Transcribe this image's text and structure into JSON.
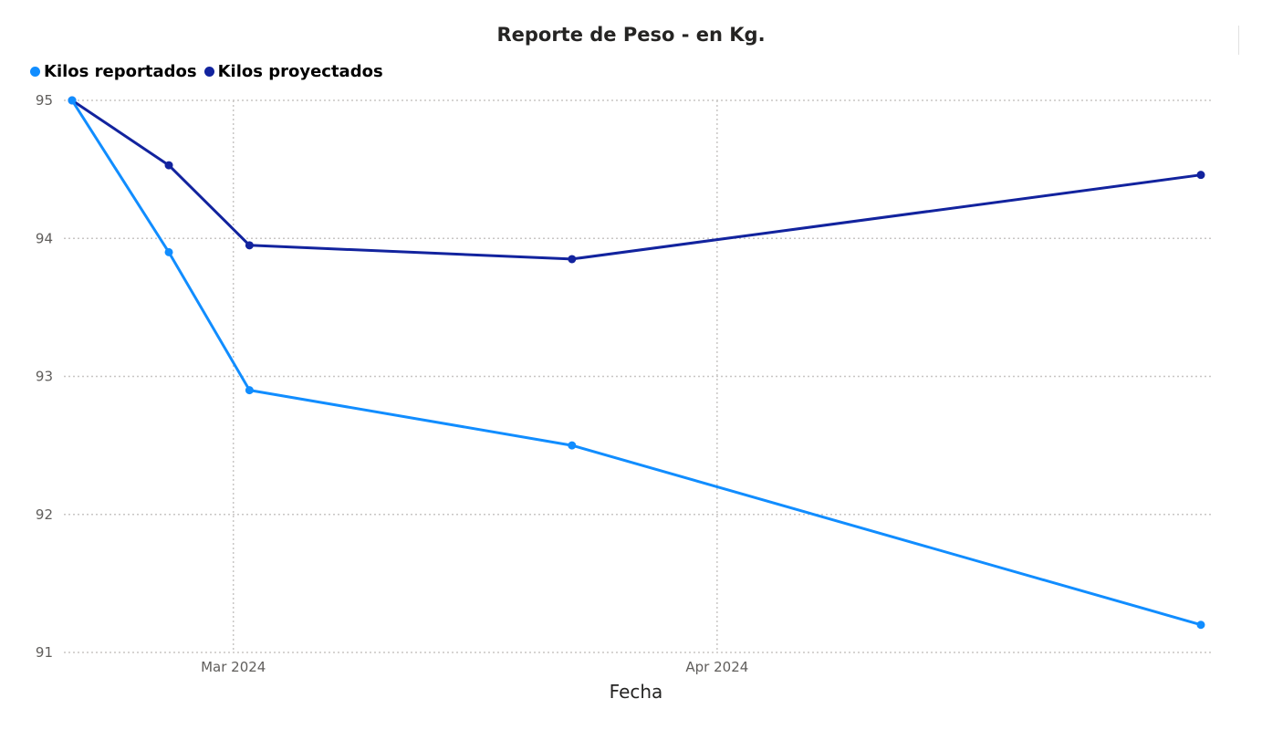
{
  "chart_data": {
    "type": "line",
    "title": "Reporte de Peso - en Kg.",
    "xlabel": "Fecha",
    "ylabel": "",
    "x": [
      "2024-02-21",
      "2024-02-27",
      "2024-03-03",
      "2024-03-23",
      "2024-05-01"
    ],
    "x_ticks": [
      {
        "date": "2024-03-02",
        "label": "Mar 2024"
      },
      {
        "date": "2024-04-01",
        "label": "Apr 2024"
      }
    ],
    "xlim": [
      "2024-02-21",
      "2024-05-01"
    ],
    "y_ticks": [
      91,
      92,
      93,
      94,
      95
    ],
    "ylim": [
      91,
      95
    ],
    "grid": true,
    "legend_position": "top-left",
    "series": [
      {
        "name": "Kilos reportados",
        "color": "#118dff",
        "values": [
          95.0,
          93.9,
          92.9,
          92.5,
          91.2
        ]
      },
      {
        "name": "Kilos proyectados",
        "color": "#12239e",
        "values": [
          95.0,
          94.53,
          93.95,
          93.85,
          94.46
        ]
      }
    ]
  }
}
